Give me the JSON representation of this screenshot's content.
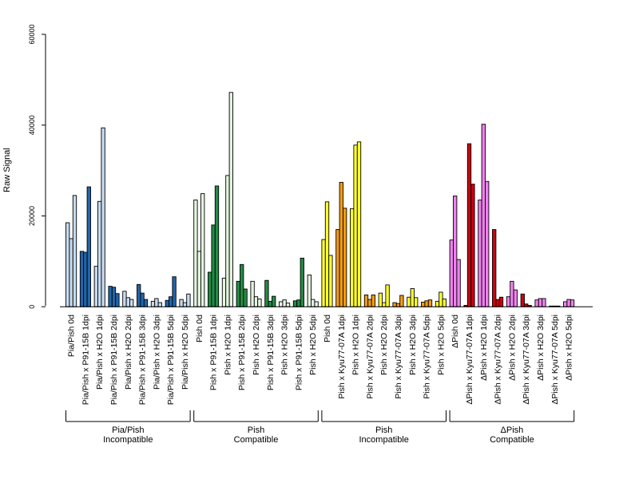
{
  "chart_data": {
    "type": "bar",
    "ylabel": "Raw Signal",
    "ylim": [
      0,
      60000
    ],
    "yticks": [
      0,
      20000,
      40000,
      60000
    ],
    "categories": [
      "Pia/Pish 0d",
      "Pia/Pish x P91-15B 1dpi",
      "Pia/Pish x H2O 1dpi",
      "Pia/Pish x P91-15B 2dpi",
      "Pia/Pish x H2O 2dpi",
      "Pia/Pish x P91-15B 3dpi",
      "Pia/Pish x H2O 3dpi",
      "Pia/Pish x P91-15B 5dpi",
      "Pia/Pish x H2O 5dpi",
      "Pish 0d",
      "Pish x P91-15B 1dpi",
      "Pish x H2O 1dpi",
      "Pish x P91-15B 2dpi",
      "Pish x H2O 2dpi",
      "Pish x P91-15B 3dpi",
      "Pish x H2O 3dpi",
      "Pish x P91-15B 5dpi",
      "Pish x H2O 5dpi",
      "Pish 0d",
      "Pish x Kyu77-07A 1dpi",
      "Pish x H2O 1dpi",
      "Pish x Kyu77-07A 2dpi",
      "Pish x H2O 2dpi",
      "Pish x Kyu77-07A 3dpi",
      "Pish x H2O 3dpi",
      "Pish x Kyu77-07A 5dpi",
      "Pish x H2O 5dpi",
      "ΔPish 0d",
      "ΔPish x Kyu77-07A 1dpi",
      "ΔPish x H2O 1dpi",
      "ΔPish x Kyu77-07A 2dpi",
      "ΔPish x H2O 2dpi",
      "ΔPish x Kyu77-07A 3dpi",
      "ΔPish x H2O 3dpi",
      "ΔPish x Kyu77-07A 5dpi",
      "ΔPish x H2O 5dpi"
    ],
    "bar_colors": [
      "#c6dbef",
      "#2166ac",
      "#c6dbef",
      "#2166ac",
      "#c6dbef",
      "#2166ac",
      "#c6dbef",
      "#2166ac",
      "#c6dbef",
      "#e5f5e0",
      "#238b45",
      "#e5f5e0",
      "#238b45",
      "#e5f5e0",
      "#238b45",
      "#e5f5e0",
      "#238b45",
      "#e5f5e0",
      "#ffff33",
      "#f39c12",
      "#ffff33",
      "#f39c12",
      "#ffff33",
      "#f39c12",
      "#ffff33",
      "#f39c12",
      "#ffff33",
      "#ee82ee",
      "#cc0011",
      "#ee82ee",
      "#cc0011",
      "#ee82ee",
      "#cc0011",
      "#ee82ee",
      "#cc0011",
      "#ee82ee"
    ],
    "values": [
      [
        18500,
        15000,
        24500
      ],
      [
        12200,
        12000,
        26400
      ],
      [
        8900,
        23200,
        39400
      ],
      [
        4500,
        4300,
        2900
      ],
      [
        3400,
        2000,
        1600
      ],
      [
        4900,
        3000,
        1600
      ],
      [
        1200,
        1800,
        900
      ],
      [
        1400,
        2200,
        6600
      ],
      [
        1600,
        900,
        2800
      ],
      [
        23500,
        12200,
        24900
      ],
      [
        7600,
        18000,
        26600
      ],
      [
        6300,
        28900,
        47200
      ],
      [
        5600,
        9300,
        3900
      ],
      [
        5600,
        2200,
        1700
      ],
      [
        5800,
        1200,
        2300
      ],
      [
        1100,
        1500,
        800
      ],
      [
        1300,
        1500,
        10700
      ],
      [
        7000,
        1600,
        1100
      ],
      [
        14800,
        23100,
        11300
      ],
      [
        17000,
        27400,
        21700
      ],
      [
        21600,
        35600,
        36300
      ],
      [
        2600,
        1600,
        2600
      ],
      [
        3000,
        900,
        4800
      ],
      [
        900,
        700,
        2500
      ],
      [
        2100,
        4000,
        2000
      ],
      [
        1000,
        1300,
        1500
      ],
      [
        1200,
        3200,
        1700
      ],
      [
        14700,
        24400,
        10400
      ],
      [
        300,
        35900,
        27000
      ],
      [
        23500,
        40200,
        27600
      ],
      [
        17000,
        1600,
        2100
      ],
      [
        2200,
        5600,
        3700
      ],
      [
        2800,
        600,
        300
      ],
      [
        1500,
        1800,
        1800
      ],
      [
        150,
        150,
        150
      ],
      [
        1100,
        1600,
        1500
      ]
    ],
    "groups": [
      {
        "line1": "Pia/Pish",
        "line2": "Incompatible"
      },
      {
        "line1": "Pish",
        "line2": "Compatible"
      },
      {
        "line1": "Pish",
        "line2": "Incompatible"
      },
      {
        "line1": "ΔPish",
        "line2": "Compatible"
      }
    ]
  }
}
